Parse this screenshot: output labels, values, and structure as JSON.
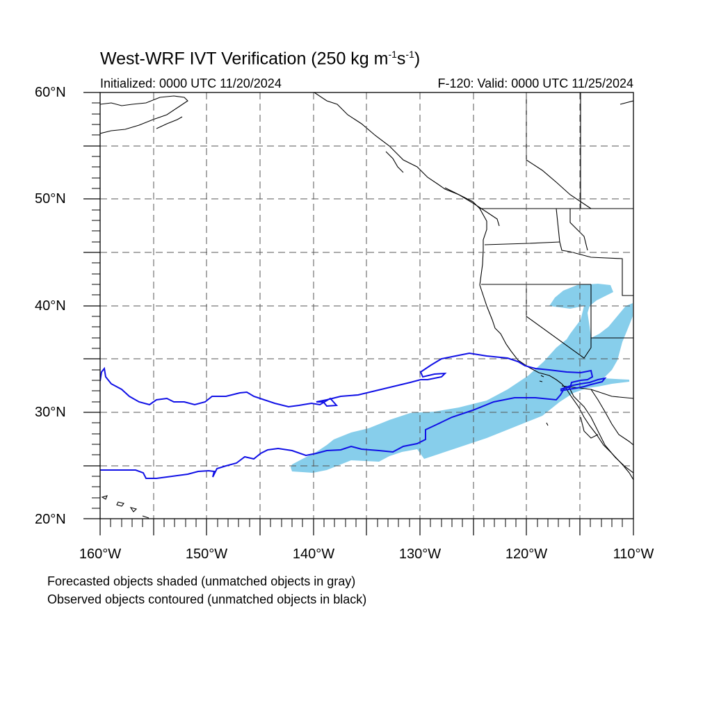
{
  "title": {
    "main": "West-WRF IVT Verification (250 kg m",
    "exp1": "-1",
    "mid": "s",
    "exp2": "-1",
    "end": ")"
  },
  "subtitle_left": "Initialized: 0000 UTC 11/20/2024",
  "subtitle_right": "F-120: Valid: 0000 UTC 11/25/2024",
  "lat_labels": [
    "60°N",
    "50°N",
    "40°N",
    "30°N",
    "20°N"
  ],
  "lon_labels": [
    "160°W",
    "150°W",
    "140°W",
    "130°W",
    "120°W",
    "110°W"
  ],
  "notes": [
    "Forecasted objects shaded (unmatched objects in gray)",
    "Observed objects contoured (unmatched objects in black)"
  ],
  "colors": {
    "forecast_fill": "#87ceeb",
    "observed_contour": "#1010e6",
    "coastline": "#000000",
    "grid": "#555555"
  },
  "map": {
    "lon_range": [
      -160,
      -110
    ],
    "lat_range": [
      20,
      60
    ],
    "grid_lon_step": 5,
    "grid_lat_step": 5,
    "grid_style": "dashed"
  }
}
